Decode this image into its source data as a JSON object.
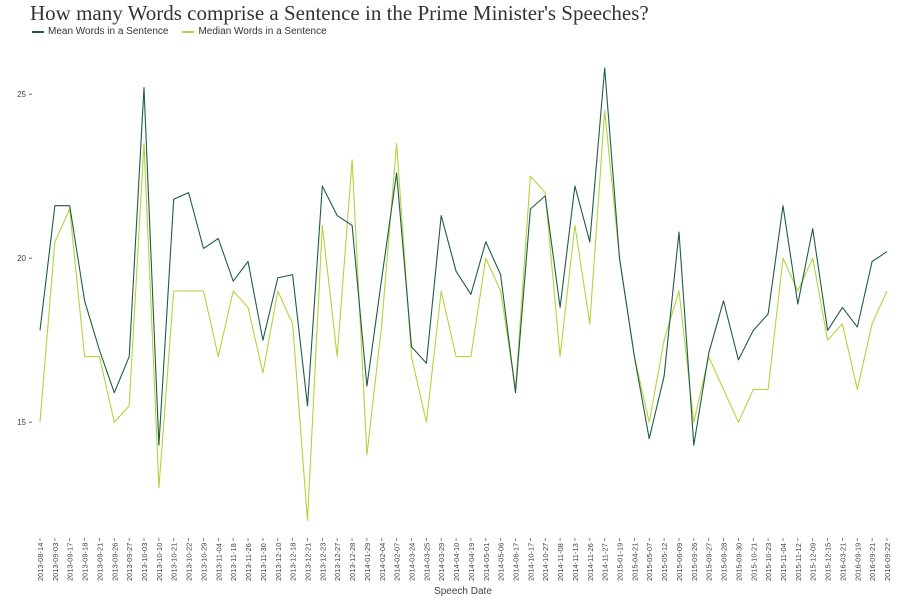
{
  "chart_data": {
    "type": "line",
    "title": "How many Words comprise a Sentence in the Prime Minister's Speeches?",
    "xlabel": "Speech Date",
    "ylabel": "",
    "ylim": [
      11.5,
      26.5
    ],
    "yticks": [
      15,
      20,
      25
    ],
    "legend_position": "top-left",
    "grid": false,
    "x": [
      "2013-08-14",
      "2013-09-03",
      "2013-09-17",
      "2013-09-18",
      "2013-09-21",
      "2013-09-26",
      "2013-09-27",
      "2013-10-03",
      "2013-10-10",
      "2013-10-21",
      "2013-10-22",
      "2013-10-29",
      "2013-11-04",
      "2013-11-18",
      "2013-11-26",
      "2013-11-30",
      "2013-12-10",
      "2013-12-18",
      "2013-12-21",
      "2013-12-23",
      "2013-12-27",
      "2013-12-28",
      "2014-01-29",
      "2014-02-04",
      "2014-02-07",
      "2014-03-24",
      "2014-03-25",
      "2014-03-29",
      "2014-04-10",
      "2014-04-19",
      "2014-05-01",
      "2014-05-06",
      "2014-06-17",
      "2014-10-17",
      "2014-10-27",
      "2014-11-08",
      "2014-11-13",
      "2014-11-26",
      "2014-11-27",
      "2015-01-19",
      "2015-04-21",
      "2015-05-07",
      "2015-05-12",
      "2015-06-09",
      "2015-09-26",
      "2015-09-27",
      "2015-09-28",
      "2015-09-30",
      "2015-10-21",
      "2015-10-23",
      "2015-11-04",
      "2015-11-12",
      "2015-12-09",
      "2015-12-15",
      "2016-03-21",
      "2016-09-19",
      "2016-09-21",
      "2016-09-22"
    ],
    "series": [
      {
        "name": "Mean Words in a Sentence",
        "color": "#1f5c46",
        "values": [
          17.8,
          21.6,
          21.6,
          18.7,
          17.2,
          15.9,
          17.0,
          25.2,
          14.3,
          21.8,
          22.0,
          20.3,
          20.6,
          19.3,
          19.9,
          17.5,
          19.4,
          19.5,
          15.5,
          22.2,
          21.3,
          21.0,
          16.1,
          19.4,
          22.6,
          17.3,
          16.8,
          21.3,
          19.6,
          18.9,
          20.5,
          19.5,
          15.9,
          21.5,
          21.9,
          18.5,
          22.2,
          20.5,
          25.8,
          20.0,
          17.0,
          14.5,
          16.4,
          20.8,
          14.3,
          17.1,
          18.7,
          16.9,
          17.8,
          18.3,
          21.6,
          18.6,
          20.9,
          17.8,
          18.5,
          17.9,
          19.9,
          20.2
        ]
      },
      {
        "name": "Median Words in a Sentence",
        "color": "#b6d23c",
        "values": [
          15.0,
          20.5,
          21.5,
          17.0,
          17.0,
          15.0,
          15.5,
          23.5,
          13.0,
          19.0,
          19.0,
          19.0,
          17.0,
          19.0,
          18.5,
          16.5,
          19.0,
          18.0,
          12.0,
          21.0,
          17.0,
          23.0,
          14.0,
          18.0,
          23.5,
          17.0,
          15.0,
          19.0,
          17.0,
          17.0,
          20.0,
          19.0,
          16.0,
          22.5,
          22.0,
          17.0,
          21.0,
          18.0,
          24.5,
          20.0,
          17.0,
          15.0,
          17.5,
          19.0,
          15.0,
          17.0,
          16.0,
          15.0,
          16.0,
          16.0,
          20.0,
          19.0,
          20.0,
          17.5,
          18.0,
          16.0,
          18.0,
          19.0
        ]
      }
    ]
  }
}
